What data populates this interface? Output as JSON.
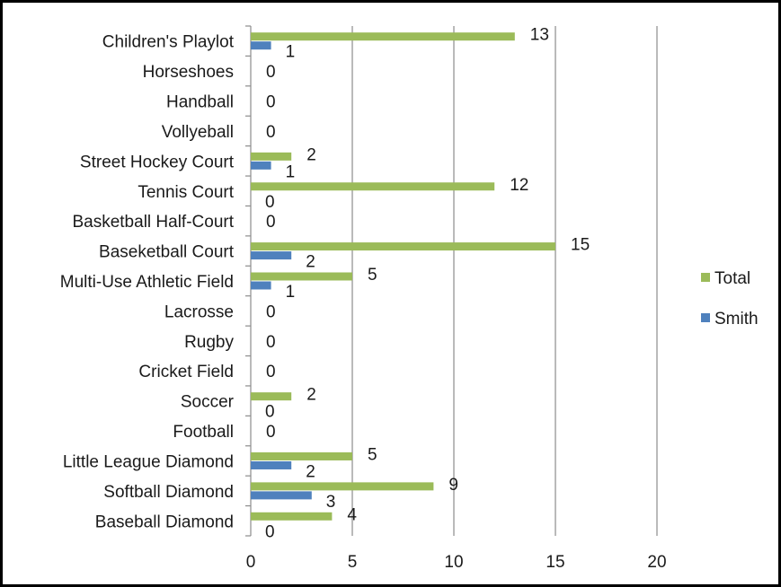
{
  "chart_data": {
    "type": "bar",
    "orientation": "horizontal",
    "categories": [
      "Children's Playlot",
      "Horseshoes",
      "Handball",
      "Vollyeball",
      "Street Hockey Court",
      "Tennis Court",
      "Basketball Half-Court",
      "Baseketball Court",
      "Multi-Use Athletic Field",
      "Lacrosse",
      "Rugby",
      "Cricket Field",
      "Soccer",
      "Football",
      "Little League Diamond",
      "Softball Diamond",
      "Baseball Diamond"
    ],
    "series": [
      {
        "name": "Total",
        "color": "#9bbb59",
        "values": [
          13,
          0,
          0,
          0,
          2,
          12,
          0,
          15,
          5,
          0,
          0,
          0,
          2,
          0,
          5,
          9,
          4
        ]
      },
      {
        "name": "Smith",
        "color": "#4f81bd",
        "values": [
          1,
          null,
          null,
          null,
          1,
          0,
          null,
          2,
          1,
          null,
          null,
          null,
          0,
          null,
          2,
          3,
          0
        ]
      }
    ],
    "xlim": [
      0,
      20
    ],
    "xticks": [
      0,
      5,
      10,
      15,
      20
    ],
    "grid": true,
    "legend": "right",
    "title": "",
    "xlabel": "",
    "ylabel": ""
  }
}
